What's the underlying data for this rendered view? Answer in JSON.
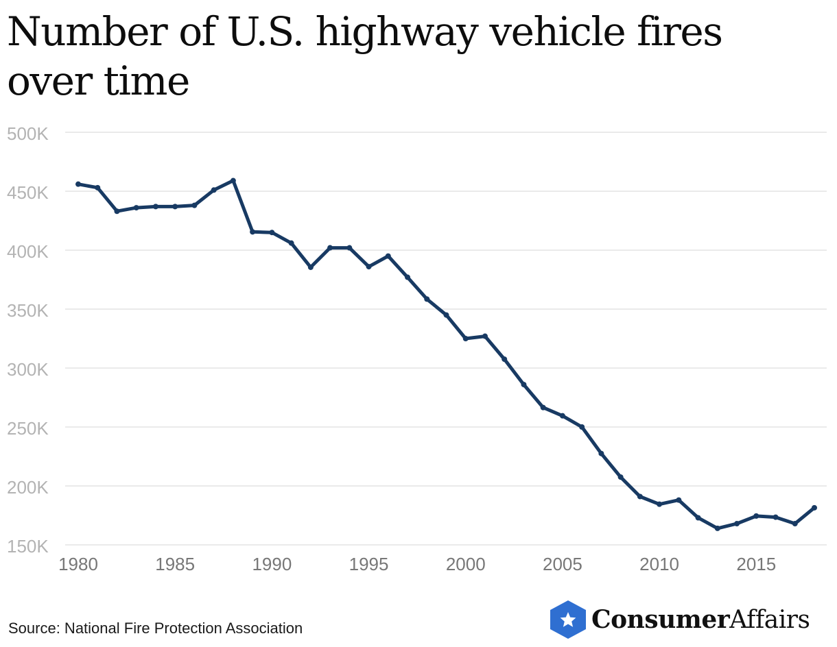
{
  "chart_data": {
    "type": "line",
    "title": "Number of U.S. highway vehicle fires over time",
    "xlabel": "",
    "ylabel": "",
    "x": [
      1980,
      1981,
      1982,
      1983,
      1984,
      1985,
      1986,
      1987,
      1988,
      1989,
      1990,
      1991,
      1992,
      1993,
      1994,
      1995,
      1996,
      1997,
      1998,
      1999,
      2000,
      2001,
      2002,
      2003,
      2004,
      2005,
      2006,
      2007,
      2008,
      2009,
      2010,
      2011,
      2012,
      2013,
      2014,
      2015,
      2016,
      2017,
      2018
    ],
    "series": [
      {
        "values": [
          456000,
          453000,
          433000,
          436000,
          437000,
          437000,
          438000,
          451000,
          459000,
          415500,
          415000,
          406000,
          385500,
          402000,
          402000,
          386000,
          395000,
          377000,
          358500,
          345000,
          325000,
          327000,
          307500,
          286000,
          266500,
          259500,
          250000,
          227500,
          207500,
          191000,
          184500,
          188000,
          173000,
          164000,
          168000,
          174500,
          173500,
          168000,
          181500
        ]
      }
    ],
    "ylim": [
      150000,
      500000
    ],
    "xlim": [
      1980,
      2018
    ],
    "y_ticks": [
      150000,
      200000,
      250000,
      300000,
      350000,
      400000,
      450000,
      500000
    ],
    "y_tick_labels": [
      "150K",
      "200K",
      "250K",
      "300K",
      "350K",
      "400K",
      "450K",
      "500K"
    ],
    "x_ticks": [
      1980,
      1985,
      1990,
      1995,
      2000,
      2005,
      2010,
      2015
    ],
    "x_tick_labels": [
      "1980",
      "1985",
      "1990",
      "1995",
      "2000",
      "2005",
      "2010",
      "2015"
    ],
    "grid": true,
    "colors": {
      "line": "#183a63",
      "grid": "#e3e3e3",
      "tick_y": "#b3b3b3",
      "tick_x": "#777777"
    }
  },
  "source_text": "Source: National Fire Protection Association",
  "brand": {
    "name_bold": "Consumer",
    "name_light": "Affairs",
    "icon": "star-hexagon-icon",
    "icon_color": "#2f6fd1"
  }
}
